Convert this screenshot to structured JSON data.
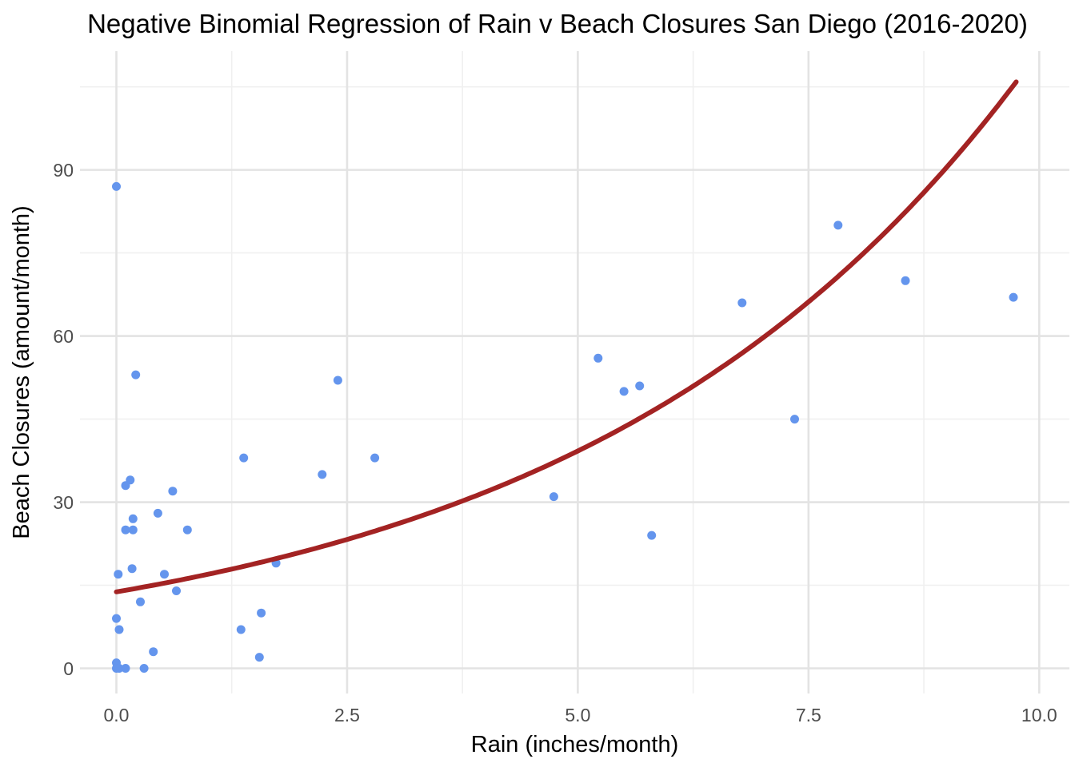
{
  "figure": {
    "title": "Negative Binomial Regression of Rain v Beach Closures San Diego (2016-2020)",
    "x_axis_label": "Rain (inches/month)",
    "y_axis_label": "Beach Closures (amount/month)"
  },
  "chart_data": {
    "type": "scatter",
    "title": "Negative Binomial Regression of Rain v Beach Closures San Diego (2016-2020)",
    "xlabel": "Rain (inches/month)",
    "ylabel": "Beach Closures (amount/month)",
    "xlim": [
      -0.39,
      10.33
    ],
    "ylim": [
      -4.5,
      111.5
    ],
    "grid": "major+minor, no axis lines, no tick marks",
    "legend": "none",
    "x_major_ticks": [
      0.0,
      2.5,
      5.0,
      7.5,
      10.0
    ],
    "x_tick_labels": [
      "0.0",
      "2.5",
      "5.0",
      "7.5",
      "10.0"
    ],
    "x_minor_ticks": [
      1.25,
      3.75,
      6.25,
      8.75
    ],
    "y_major_ticks": [
      0,
      30,
      60,
      90
    ],
    "y_tick_labels": [
      "0",
      "30",
      "60",
      "90"
    ],
    "y_minor_ticks": [
      15,
      45,
      75,
      105
    ],
    "points": [
      [
        0.0,
        87
      ],
      [
        0.21,
        53
      ],
      [
        0.15,
        34
      ],
      [
        0.1,
        33
      ],
      [
        0.61,
        32
      ],
      [
        0.45,
        28
      ],
      [
        0.18,
        27
      ],
      [
        0.1,
        25
      ],
      [
        0.18,
        25
      ],
      [
        0.77,
        25
      ],
      [
        0.17,
        18
      ],
      [
        0.02,
        17
      ],
      [
        0.52,
        17
      ],
      [
        0.65,
        14
      ],
      [
        0.26,
        12
      ],
      [
        0.0,
        9
      ],
      [
        0.03,
        7
      ],
      [
        0.4,
        3
      ],
      [
        0.0,
        1
      ],
      [
        0.0,
        0
      ],
      [
        0.03,
        0
      ],
      [
        0.1,
        0
      ],
      [
        0.3,
        0
      ],
      [
        1.35,
        7
      ],
      [
        1.38,
        38
      ],
      [
        1.55,
        2
      ],
      [
        1.57,
        10
      ],
      [
        1.73,
        19
      ],
      [
        2.23,
        35
      ],
      [
        2.4,
        52
      ],
      [
        2.8,
        38
      ],
      [
        4.74,
        31
      ],
      [
        5.22,
        56
      ],
      [
        5.5,
        50
      ],
      [
        5.67,
        51
      ],
      [
        5.8,
        24
      ],
      [
        6.78,
        66
      ],
      [
        7.35,
        45
      ],
      [
        7.82,
        80
      ],
      [
        8.55,
        70
      ],
      [
        9.72,
        67
      ]
    ],
    "regression_curve": {
      "model": "negative binomial fit (exponential mean curve)",
      "equation": "y = 13.8 * exp(0.209 * x)",
      "intercept": 13.8,
      "rate": 0.209,
      "x_start": 0.0,
      "x_end": 9.77,
      "y_start": 13.8,
      "y_end": 106.3
    },
    "colors": {
      "point": "#6495ED",
      "line": "#A32323",
      "grid_major": "#E3E3E3",
      "grid_minor": "#F0F0F0",
      "tick_label": "#4D4D4D",
      "axis_title": "#000000",
      "title": "#000000",
      "background": "#FFFFFF"
    }
  }
}
